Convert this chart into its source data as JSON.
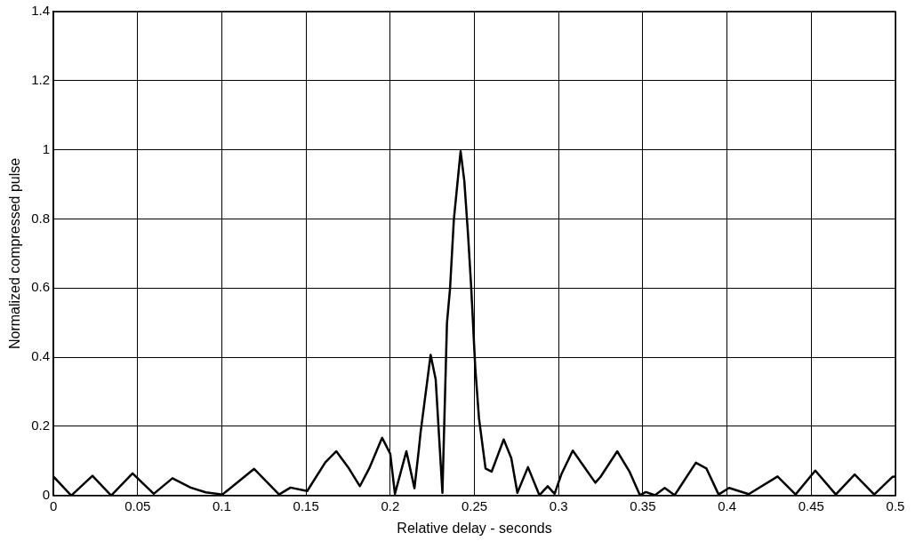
{
  "chart_data": {
    "type": "line",
    "xlabel": "Relative delay - seconds",
    "ylabel": "Normalized compressed pulse",
    "xlim": [
      0,
      0.5
    ],
    "ylim": [
      0,
      1.4
    ],
    "xticks": [
      0,
      0.05,
      0.1,
      0.15,
      0.2,
      0.25,
      0.3,
      0.35,
      0.4,
      0.45,
      0.5
    ],
    "yticks": [
      0,
      0.2,
      0.4,
      0.6,
      0.8,
      1,
      1.2,
      1.4
    ],
    "grid": true,
    "legend": false,
    "marker": "none",
    "line_style": "solid",
    "series": [
      {
        "color": "#000000",
        "x": [
          0,
          0.0106,
          0.0232,
          0.0343,
          0.047,
          0.0596,
          0.0707,
          0.0815,
          0.0905,
          0.1004,
          0.1192,
          0.134,
          0.1408,
          0.1507,
          0.1615,
          0.168,
          0.175,
          0.182,
          0.1875,
          0.1952,
          0.2,
          0.2028,
          0.2096,
          0.2144,
          0.2171,
          0.218,
          0.224,
          0.227,
          0.231,
          0.2337,
          0.2355,
          0.2378,
          0.2418,
          0.244,
          0.2462,
          0.248,
          0.2505,
          0.2527,
          0.2566,
          0.2602,
          0.2674,
          0.2719,
          0.2755,
          0.2818,
          0.2886,
          0.2935,
          0.2976,
          0.3016,
          0.3084,
          0.3159,
          0.3218,
          0.3249,
          0.3348,
          0.342,
          0.3483,
          0.3518,
          0.3572,
          0.363,
          0.3689,
          0.3815,
          0.3878,
          0.395,
          0.4012,
          0.4129,
          0.43,
          0.4407,
          0.4524,
          0.4646,
          0.4758,
          0.4874,
          0.4982,
          0.5
        ],
        "values": [
          0.055,
          0,
          0.057,
          0,
          0.064,
          0.005,
          0.05,
          0.023,
          0.009,
          0.003,
          0.077,
          0.003,
          0.023,
          0.013,
          0.096,
          0.128,
          0.082,
          0.027,
          0.078,
          0.167,
          0.121,
          0.005,
          0.128,
          0.021,
          0.138,
          0.181,
          0.407,
          0.336,
          0.008,
          0.499,
          0.597,
          0.799,
          0.996,
          0.91,
          0.756,
          0.61,
          0.37,
          0.224,
          0.078,
          0.069,
          0.162,
          0.108,
          0.008,
          0.082,
          0.001,
          0.027,
          0.005,
          0.061,
          0.13,
          0.078,
          0.037,
          0.054,
          0.128,
          0.07,
          0.001,
          0.01,
          0.001,
          0.022,
          0.001,
          0.095,
          0.078,
          0.003,
          0.022,
          0.004,
          0.055,
          0.003,
          0.072,
          0.003,
          0.061,
          0.003,
          0.054,
          0.055
        ]
      }
    ]
  }
}
